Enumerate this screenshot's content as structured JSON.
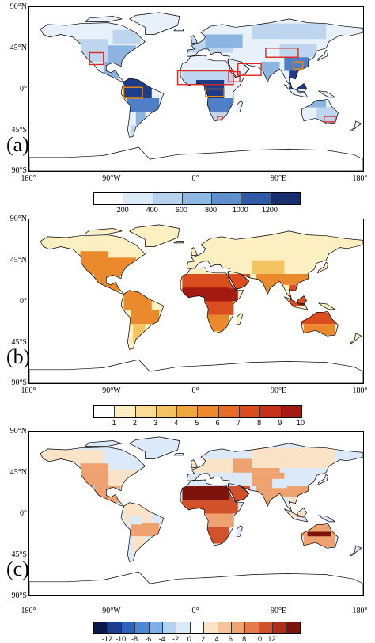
{
  "panels": [
    {
      "label": "(a)",
      "lat_ticks": [
        "90°N",
        "45°N",
        "0°",
        "45°S",
        "90°S"
      ],
      "lon_ticks": [
        "180°",
        "90°W",
        "0°",
        "90°E",
        "180°"
      ],
      "colorbar": {
        "colors": [
          "#ffffff",
          "#ddeaf7",
          "#b6d2ee",
          "#8db8e3",
          "#5f8fcf",
          "#2f5aa8",
          "#172e6f"
        ],
        "ticks": [
          "200",
          "400",
          "600",
          "800",
          "1000",
          "1200"
        ]
      },
      "palette": [
        "#e8f0fa",
        "#bdd5ef",
        "#8bb5e0",
        "#4f7fc6",
        "#1d3c8a"
      ],
      "box_colors": {
        "red": "#e0261d",
        "orange": "#e88a12"
      }
    },
    {
      "label": "(b)",
      "lat_ticks": [
        "90°N",
        "45°N",
        "0°",
        "45°S",
        "90°S"
      ],
      "lon_ticks": [
        "180°",
        "90°W",
        "0°",
        "90°E",
        "180°"
      ],
      "colorbar": {
        "colors": [
          "#ffffff",
          "#fcefc2",
          "#f9dc92",
          "#f5c462",
          "#efa63e",
          "#ea8a2d",
          "#e46c24",
          "#d94d1e",
          "#c43118",
          "#a21a12"
        ],
        "ticks": [
          "1",
          "2",
          "3",
          "4",
          "5",
          "6",
          "7",
          "8",
          "9",
          "10"
        ]
      },
      "palette": [
        "#fcefc2",
        "#f5c462",
        "#ea8a2d",
        "#d94d1e",
        "#a21a12"
      ]
    },
    {
      "label": "(c)",
      "lat_ticks": [
        "90°N",
        "45°N",
        "0°",
        "45°S",
        "90°S"
      ],
      "lon_ticks": [
        "180°",
        "90°W",
        "0°",
        "90°E",
        "180°"
      ],
      "colorbar": {
        "colors": [
          "#08184a",
          "#1c3d8c",
          "#2d62be",
          "#4b88d8",
          "#7db0e8",
          "#b2d2f2",
          "#dce9f8",
          "#ffffff",
          "#fbe3c8",
          "#f5c49a",
          "#eea270",
          "#e47a47",
          "#d1512a",
          "#b02d18",
          "#7e130d"
        ],
        "ticks": [
          "-12",
          "-10",
          "-8",
          "-6",
          "-4",
          "-2",
          "0",
          "2",
          "4",
          "6",
          "8",
          "10",
          "12"
        ]
      },
      "palette": [
        "#dce9f8",
        "#fbe3c8",
        "#eea270",
        "#d1512a",
        "#7e130d"
      ]
    }
  ]
}
